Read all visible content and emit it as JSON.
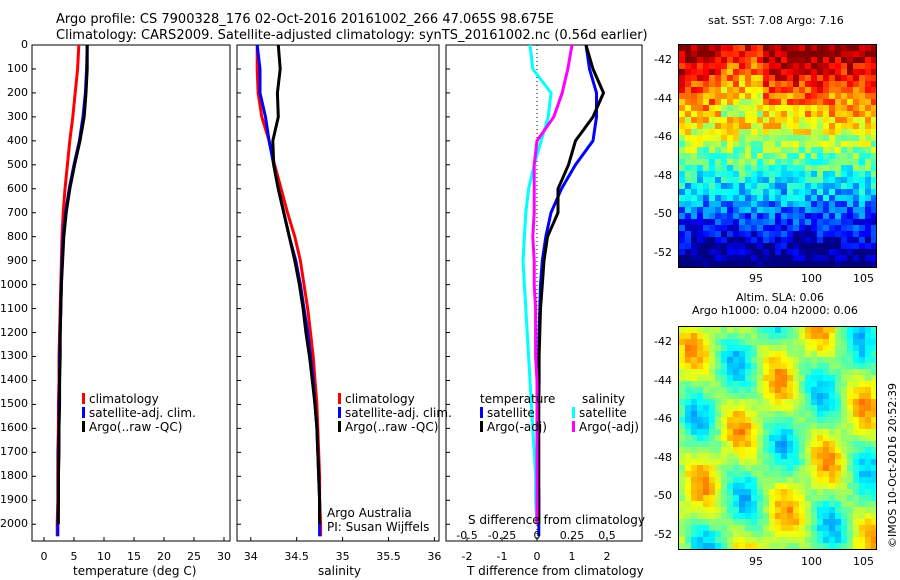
{
  "header": {
    "line1": "Argo profile: CS 7900328_176 02-Oct-2016 20161002_266 47.065S 98.675E",
    "line2": "Climatology: CARS2009. Satellite-adjusted climatology: synTS_20161002.nc (0.56d earlier)"
  },
  "colors": {
    "climatology": "#ff0000",
    "satellite": "#0000ff",
    "argo": "#000000",
    "sat_salinity": "#00ffff",
    "argo_salinity": "#ff00ff"
  },
  "depth_ticks": [
    "0",
    "100",
    "200",
    "300",
    "400",
    "500",
    "600",
    "700",
    "800",
    "900",
    "1000",
    "1100",
    "1200",
    "1300",
    "1400",
    "1500",
    "1600",
    "1700",
    "1800",
    "1900",
    "2000"
  ],
  "panel_temp": {
    "xlabel": "temperature (deg C)",
    "xticks": [
      "0",
      "5",
      "10",
      "15",
      "20",
      "25",
      "30"
    ],
    "legend": [
      "climatology",
      "satellite-adj. clim.",
      "Argo(..raw -QC)"
    ]
  },
  "panel_sal": {
    "xlabel": "salinity",
    "xticks": [
      "34",
      "34.5",
      "35",
      "35.5",
      "36"
    ],
    "legend": [
      "climatology",
      "satellite-adj. clim.",
      "Argo(..raw -QC)"
    ],
    "note1": "Argo Australia",
    "note2": "PI: Susan Wijffels"
  },
  "panel_diff": {
    "xlabel": "T difference from climatology",
    "xticks": [
      "-2",
      "-1",
      "0",
      "1",
      "2"
    ],
    "sticks_label": "S difference from climatology",
    "sticks": [
      "-0.5",
      "-0.25",
      "0",
      "0.25",
      "0.5"
    ],
    "legend_left_title": "temperature",
    "legend_right_title": "salinity",
    "legend_left": [
      "satellite",
      "Argo(-adj)"
    ],
    "legend_right": [
      "satellite",
      "Argo(-adj)"
    ]
  },
  "sst_map": {
    "title": "sat. SST: 7.08 Argo: 7.16",
    "yticks": [
      "-42",
      "-44",
      "-46",
      "-48",
      "-50",
      "-52"
    ],
    "xticks": [
      "95",
      "100",
      "105"
    ]
  },
  "sla_map": {
    "title1": "Altim. SLA: 0.06",
    "title2": "Argo h1000: 0.04 h2000: 0.06",
    "yticks": [
      "-42",
      "-44",
      "-46",
      "-48",
      "-50",
      "-52"
    ],
    "xticks": [
      "95",
      "100",
      "105"
    ]
  },
  "credit": "©IMOS 10-Oct-2016 20:52:39",
  "chart_data": [
    {
      "type": "line",
      "xlabel": "temperature (deg C)",
      "ylabel": "",
      "xlim": [
        -2,
        31
      ],
      "ylim": [
        2070,
        0
      ],
      "series": [
        {
          "name": "climatology",
          "x": [
            5.8,
            5.6,
            5.2,
            4.8,
            4.3,
            3.9,
            3.5,
            3.2,
            3.0,
            2.9,
            2.8,
            2.7,
            2.6,
            2.5,
            2.5,
            2.4,
            2.4,
            2.3,
            2.3,
            2.3,
            2.2,
            2.2
          ],
          "y": [
            0,
            100,
            200,
            300,
            400,
            500,
            600,
            700,
            800,
            900,
            1000,
            1100,
            1200,
            1300,
            1400,
            1500,
            1600,
            1700,
            1800,
            1900,
            2000,
            2050
          ]
        },
        {
          "name": "satellite-adj. clim.",
          "x": [
            7.2,
            7.1,
            6.9,
            6.5,
            5.9,
            5.0,
            4.2,
            3.6,
            3.2,
            3.0,
            2.9,
            2.8,
            2.7,
            2.6,
            2.6,
            2.5,
            2.5,
            2.4,
            2.4,
            2.4,
            2.3,
            2.3
          ],
          "y": [
            0,
            100,
            200,
            300,
            400,
            500,
            600,
            700,
            800,
            900,
            1000,
            1100,
            1200,
            1300,
            1400,
            1500,
            1600,
            1700,
            1800,
            1900,
            2000,
            2050
          ]
        },
        {
          "name": "Argo(..raw -QC)",
          "x": [
            7.2,
            7.2,
            7.0,
            6.7,
            6.0,
            5.1,
            4.3,
            3.7,
            3.3,
            3.1,
            2.9,
            2.8,
            2.7,
            2.7,
            2.6,
            2.6,
            2.5,
            2.5,
            2.4,
            2.4,
            2.4
          ],
          "y": [
            0,
            100,
            200,
            300,
            400,
            500,
            600,
            700,
            800,
            900,
            1000,
            1100,
            1200,
            1300,
            1400,
            1500,
            1600,
            1700,
            1800,
            1900,
            2000
          ]
        }
      ]
    },
    {
      "type": "line",
      "xlabel": "salinity",
      "ylabel": "",
      "xlim": [
        33.85,
        36.05
      ],
      "ylim": [
        2070,
        0
      ],
      "series": [
        {
          "name": "climatology",
          "x": [
            34.07,
            34.07,
            34.08,
            34.12,
            34.2,
            34.26,
            34.33,
            34.4,
            34.48,
            34.54,
            34.58,
            34.62,
            34.65,
            34.68,
            34.7,
            34.72,
            34.73,
            34.74,
            34.75,
            34.75,
            34.76,
            34.76
          ],
          "y": [
            0,
            100,
            200,
            300,
            400,
            500,
            600,
            700,
            800,
            900,
            1000,
            1100,
            1200,
            1300,
            1400,
            1500,
            1600,
            1700,
            1800,
            1900,
            2000,
            2050
          ]
        },
        {
          "name": "satellite-adj. clim.",
          "x": [
            34.07,
            34.1,
            34.1,
            34.16,
            34.2,
            34.25,
            34.3,
            34.36,
            34.42,
            34.49,
            34.54,
            34.58,
            34.62,
            34.65,
            34.68,
            34.7,
            34.72,
            34.73,
            34.74,
            34.75,
            34.75,
            34.75
          ],
          "y": [
            0,
            100,
            200,
            300,
            400,
            500,
            600,
            700,
            800,
            900,
            1000,
            1100,
            1200,
            1300,
            1400,
            1500,
            1600,
            1700,
            1800,
            1900,
            2000,
            2050
          ]
        },
        {
          "name": "Argo(..raw -QC)",
          "x": [
            34.3,
            34.32,
            34.29,
            34.3,
            34.24,
            34.25,
            34.3,
            34.36,
            34.42,
            34.48,
            34.53,
            34.57,
            34.6,
            34.64,
            34.67,
            34.7,
            34.72,
            34.73,
            34.74,
            34.75,
            34.75
          ],
          "y": [
            0,
            100,
            200,
            300,
            400,
            500,
            600,
            700,
            800,
            900,
            1000,
            1100,
            1200,
            1300,
            1400,
            1500,
            1600,
            1700,
            1800,
            1900,
            2000
          ]
        }
      ]
    },
    {
      "type": "line",
      "xlabel": "T difference from climatology",
      "ylabel": "",
      "xlim": [
        -2.6,
        3.0
      ],
      "ylim": [
        2070,
        0
      ],
      "series": [
        {
          "name": "satellite",
          "x": [
            1.4,
            1.5,
            1.7,
            1.7,
            1.6,
            1.1,
            0.7,
            0.4,
            0.25,
            0.15,
            0.1,
            0.08,
            0.06,
            0.05,
            0.05,
            0.04,
            0.04,
            0.04,
            0.04,
            0.05,
            0.05,
            0.05
          ],
          "y": [
            0,
            100,
            200,
            300,
            400,
            500,
            600,
            700,
            800,
            900,
            1000,
            1100,
            1200,
            1300,
            1400,
            1500,
            1600,
            1700,
            1800,
            1900,
            2000,
            2050
          ]
        },
        {
          "name": "Argo(-adj)",
          "x": [
            1.4,
            1.6,
            1.9,
            1.6,
            1.1,
            0.9,
            0.6,
            0.6,
            0.3,
            0.2,
            0.15,
            0.1,
            0.08,
            0.06,
            0.06,
            0.05,
            0.05,
            0.05,
            0.05,
            0.05,
            0.05
          ],
          "y": [
            0,
            100,
            200,
            300,
            400,
            500,
            600,
            700,
            800,
            900,
            1000,
            1100,
            1200,
            1300,
            1400,
            1500,
            1600,
            1700,
            1800,
            1900,
            2000
          ]
        }
      ]
    },
    {
      "type": "line",
      "xlabel": "S difference from climatology",
      "ylabel": "",
      "xlim": [
        -0.65,
        0.75
      ],
      "ylim": [
        2070,
        0
      ],
      "series": [
        {
          "name": "satellite",
          "x": [
            -0.05,
            -0.03,
            0.1,
            0.08,
            0.03,
            -0.02,
            -0.06,
            -0.08,
            -0.09,
            -0.1,
            -0.09,
            -0.08,
            -0.07,
            -0.06,
            -0.05,
            -0.04,
            -0.03,
            -0.02,
            -0.01,
            -0.01,
            0.0
          ],
          "y": [
            0,
            100,
            200,
            300,
            400,
            500,
            600,
            700,
            800,
            900,
            1000,
            1100,
            1200,
            1300,
            1400,
            1500,
            1600,
            1700,
            1800,
            1900,
            2000
          ]
        },
        {
          "name": "Argo(-adj)",
          "x": [
            0.25,
            0.22,
            0.18,
            0.12,
            0.0,
            -0.02,
            -0.02,
            -0.02,
            -0.03,
            -0.02,
            -0.02,
            -0.01,
            -0.01,
            -0.01,
            0.0,
            0.0,
            0.0,
            0.0,
            0.0,
            0.0,
            0.0
          ],
          "y": [
            0,
            100,
            200,
            300,
            400,
            500,
            600,
            700,
            800,
            900,
            1000,
            1100,
            1200,
            1300,
            1400,
            1500,
            1600,
            1700,
            1800,
            1900,
            2000
          ]
        }
      ]
    },
    {
      "type": "heatmap",
      "title": "sat. SST: 7.08 Argo: 7.16",
      "xlim": [
        91.5,
        106.5
      ],
      "ylim": [
        -53.5,
        -41
      ]
    },
    {
      "type": "heatmap",
      "title": "Altim. SLA: 0.06",
      "xlim": [
        91.5,
        106.5
      ],
      "ylim": [
        -53.5,
        -41
      ]
    }
  ]
}
